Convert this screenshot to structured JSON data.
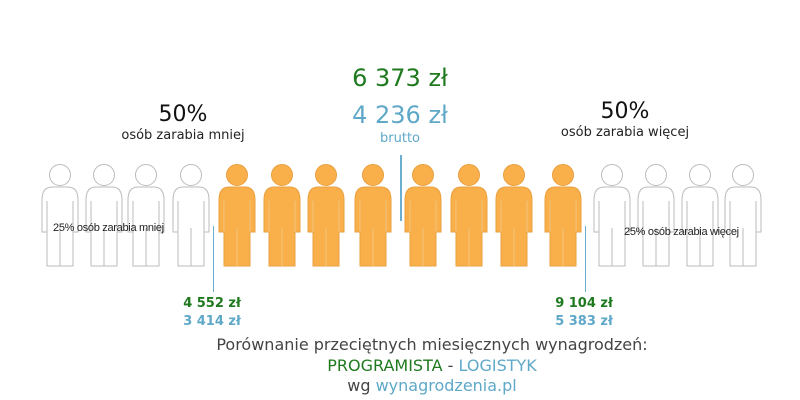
{
  "median": {
    "gross": "6 373 zł",
    "net": "4 236 zł",
    "label": "brutto"
  },
  "left_half": {
    "percent": "50%",
    "text": "osób zarabia mniej"
  },
  "right_half": {
    "percent": "50%",
    "text": "osób zarabia więcej"
  },
  "lower_quartile": {
    "text": "25% osób zarabia mniej",
    "gross": "4 552 zł",
    "net": "3 414 zł"
  },
  "upper_quartile": {
    "text": "25% osób zarabia więcej",
    "gross": "9 104 zł",
    "net": "5 383 zł"
  },
  "people": {
    "total": 16,
    "highlighted_from": 5,
    "highlighted_to": 12,
    "highlight_color": "#f9b04a",
    "outline_color": "#bbbbbb"
  },
  "colors": {
    "gross": "#1f7a1f",
    "net": "#5fa8c8"
  },
  "footer": {
    "line1": "Porównanie przeciętnych miesięcznych wynagrodzeń:",
    "job1": "PROGRAMISTA",
    "sep": " - ",
    "job2": "LOGISTYK",
    "by": "wg ",
    "link": "wynagrodzenia.pl"
  }
}
